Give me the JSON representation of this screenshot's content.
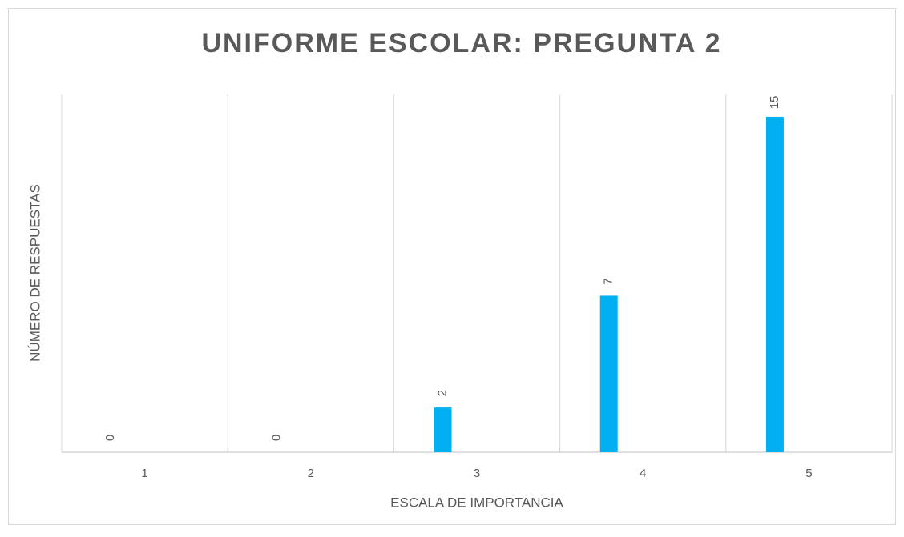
{
  "chart_data": {
    "type": "bar",
    "title": "UNIFORME ESCOLAR: PREGUNTA 2",
    "x_label": "ESCALA DE IMPORTANCIA",
    "y_label": "NÚMERO DE RESPUESTAS",
    "categories": [
      "1",
      "2",
      "3",
      "4",
      "5"
    ],
    "values": [
      0,
      0,
      2,
      7,
      15
    ],
    "color": "#00b0f0",
    "ylim": [
      0,
      16
    ],
    "grid": true
  }
}
